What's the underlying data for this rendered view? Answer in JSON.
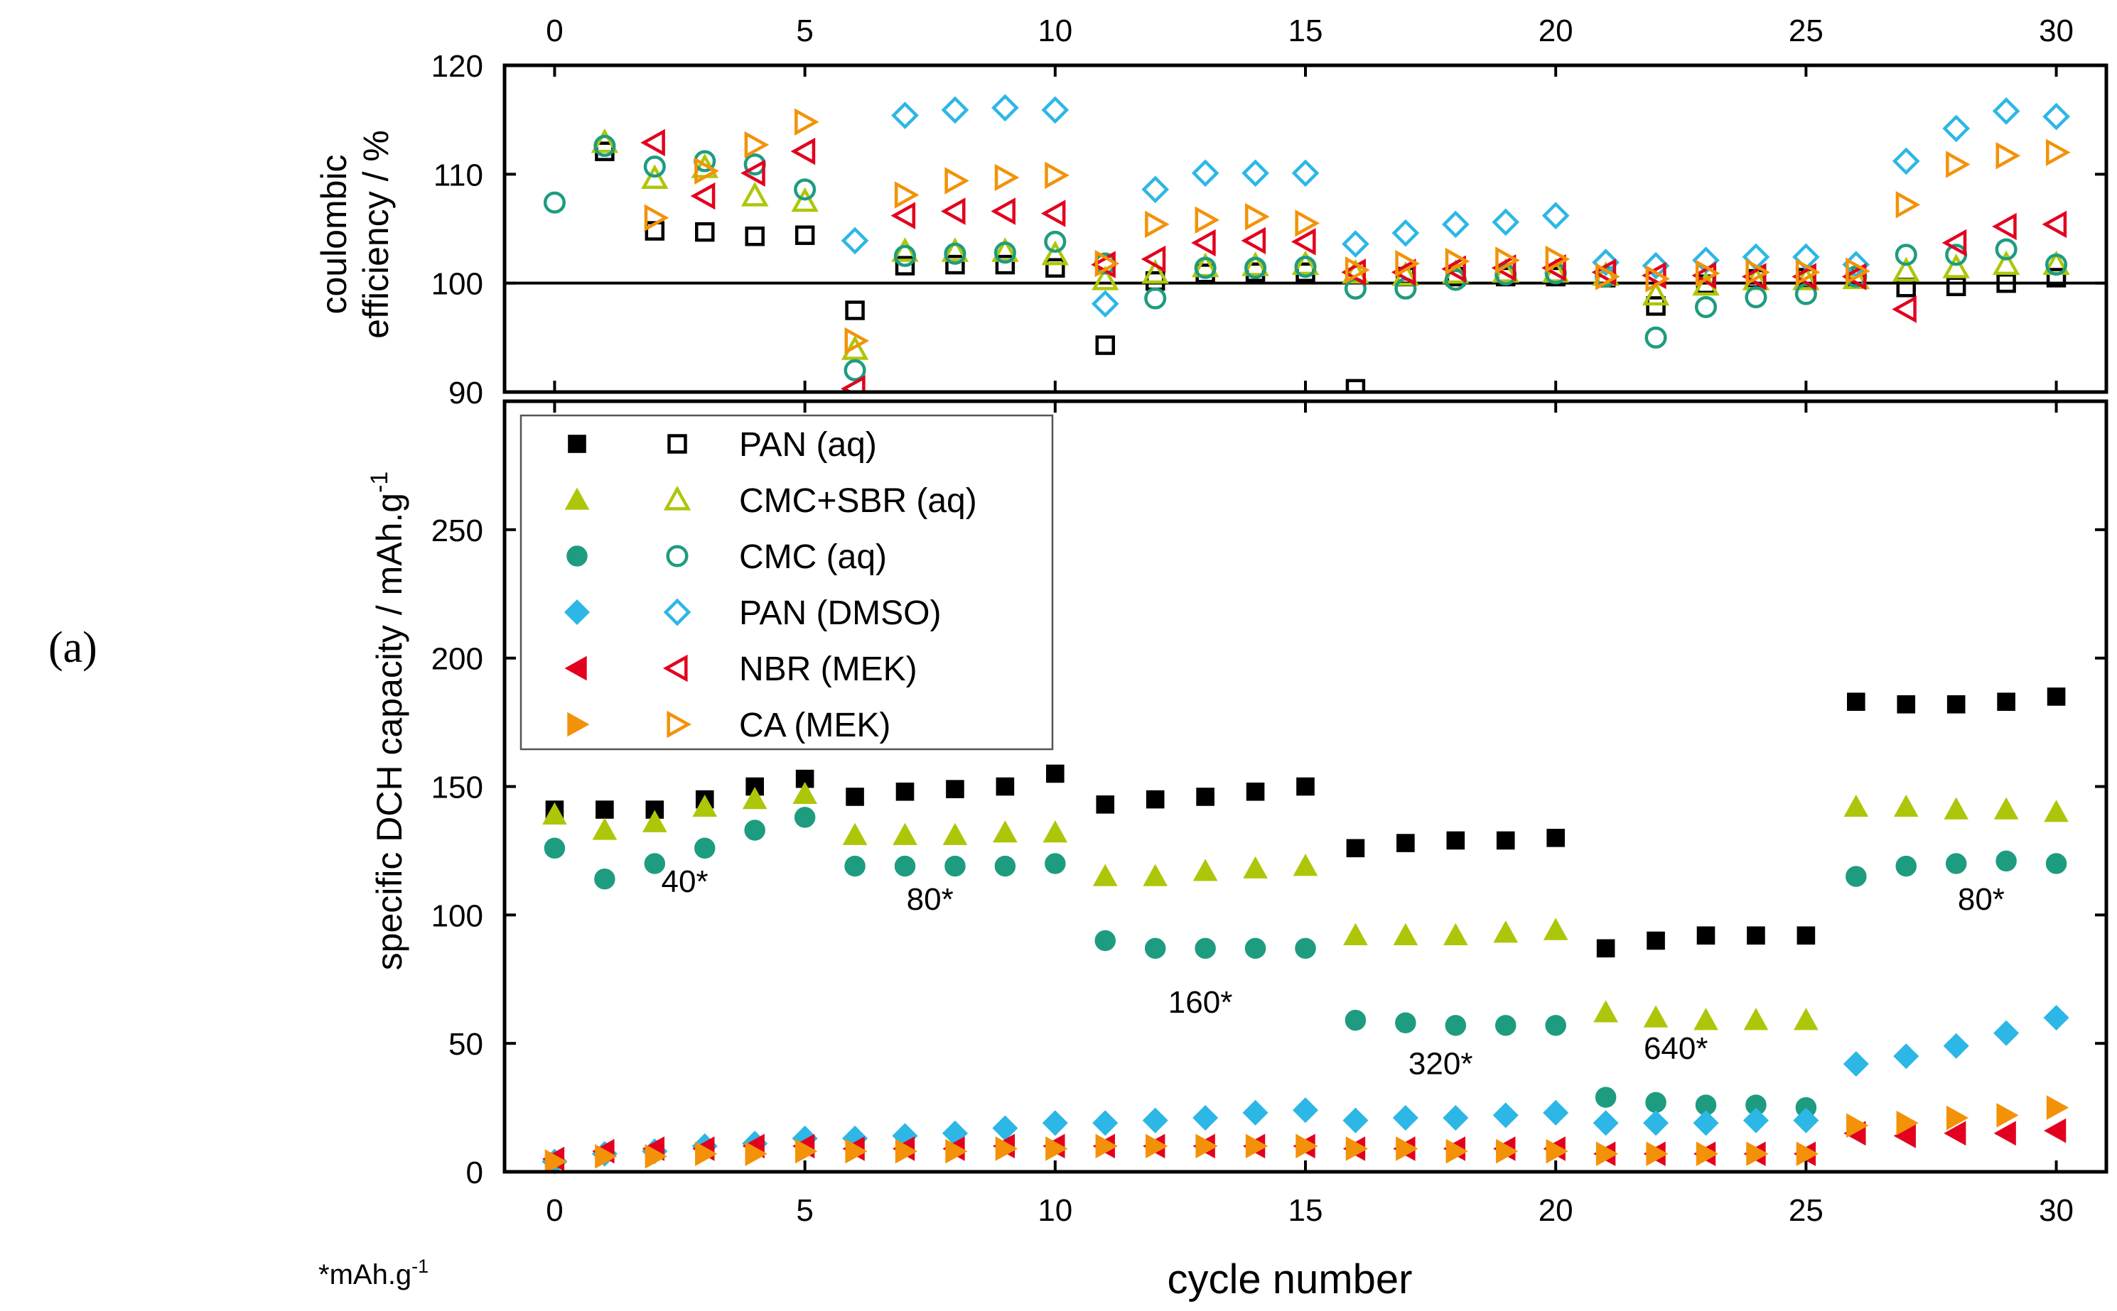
{
  "figure": {
    "panel_label": "(a)",
    "footnote": "*mAh.g",
    "footnote_sup": "-1"
  },
  "colors": {
    "PAN (aq)": "#000000",
    "CMC+SBR (aq)": "#aec60a",
    "CMC (aq)": "#1e9c80",
    "PAN (DMSO)": "#2cb7e6",
    "NBR (MEK)": "#e3001e",
    "CA (MEK)": "#f39208"
  },
  "chart_data": [
    {
      "type": "scatter",
      "panel": "top",
      "ylabel_line1": "coulombic",
      "ylabel_line2": "efficiency / %",
      "xlabel": "",
      "xlim": [
        -1,
        31
      ],
      "ylim": [
        90,
        120
      ],
      "xticks": [
        0,
        5,
        10,
        15,
        20,
        25,
        30
      ],
      "yticks": [
        90,
        100,
        110,
        120
      ],
      "reference_line": 100,
      "series": [
        {
          "name": "PAN (aq)",
          "marker": "square",
          "x": [
            1,
            2,
            3,
            4,
            5,
            6,
            7,
            8,
            9,
            10,
            11,
            12,
            13,
            14,
            15,
            16,
            17,
            18,
            19,
            20,
            21,
            22,
            23,
            24,
            25,
            26,
            27,
            28,
            29,
            30
          ],
          "values": [
            112.1,
            104.8,
            104.7,
            104.3,
            104.4,
            97.5,
            101.6,
            101.7,
            101.7,
            101.4,
            94.3,
            100.2,
            100.9,
            101,
            101,
            90.3,
            100.6,
            100.6,
            100.6,
            100.6,
            100.5,
            97.9,
            99.9,
            100.4,
            100.5,
            100.4,
            99.6,
            99.7,
            100,
            100.5
          ]
        },
        {
          "name": "CMC+SBR (aq)",
          "marker": "triangle-up",
          "x": [
            1,
            2,
            3,
            4,
            5,
            6,
            7,
            8,
            9,
            10,
            11,
            12,
            13,
            14,
            15,
            16,
            17,
            18,
            19,
            20,
            21,
            22,
            23,
            24,
            25,
            26,
            27,
            28,
            29,
            30
          ],
          "values": [
            112.9,
            109.6,
            110.6,
            108,
            107.5,
            93.9,
            102.9,
            102.9,
            102.9,
            102.6,
            100.3,
            100.9,
            101.5,
            101.6,
            101.7,
            100.9,
            100.7,
            100.9,
            101,
            101,
            100.7,
            98.9,
            99.8,
            100.3,
            100.3,
            100.4,
            101.1,
            101.4,
            101.7,
            101.7
          ]
        },
        {
          "name": "CMC (aq)",
          "marker": "circle",
          "x": [
            0,
            1,
            2,
            3,
            4,
            5,
            6,
            7,
            8,
            9,
            10,
            11,
            12,
            13,
            14,
            15,
            16,
            17,
            18,
            19,
            20,
            21,
            22,
            23,
            24,
            25,
            26,
            27,
            28,
            29,
            30
          ],
          "values": [
            107.4,
            112.6,
            110.7,
            111.2,
            110.9,
            108.6,
            92,
            102.5,
            102.7,
            102.8,
            103.8,
            101.8,
            98.6,
            101.4,
            101.4,
            101.5,
            99.5,
            99.5,
            100.3,
            100.8,
            100.9,
            100.6,
            95,
            97.8,
            98.7,
            99,
            100.6,
            102.6,
            102.6,
            103.1,
            101.7
          ]
        },
        {
          "name": "PAN (DMSO)",
          "marker": "diamond",
          "x": [
            6,
            7,
            8,
            9,
            10,
            11,
            12,
            13,
            14,
            15,
            16,
            17,
            18,
            19,
            20,
            21,
            22,
            23,
            24,
            25,
            26,
            27,
            28,
            29,
            30
          ],
          "values": [
            103.9,
            115.4,
            115.9,
            116.1,
            115.9,
            98.1,
            108.6,
            110.1,
            110.1,
            110.1,
            103.6,
            104.6,
            105.4,
            105.6,
            106.2,
            101.9,
            101.6,
            102.1,
            102.4,
            102.4,
            101.7,
            111.2,
            114.2,
            115.8,
            115.3
          ]
        },
        {
          "name": "NBR (MEK)",
          "marker": "triangle-left",
          "x": [
            2,
            3,
            4,
            5,
            6,
            7,
            8,
            9,
            10,
            11,
            12,
            13,
            14,
            15,
            16,
            17,
            18,
            19,
            20,
            21,
            22,
            23,
            24,
            25,
            26,
            27,
            28,
            29,
            30
          ],
          "values": [
            112.9,
            108,
            110.1,
            112.1,
            90.3,
            106.2,
            106.6,
            106.6,
            106.4,
            101.7,
            102.2,
            103.7,
            103.9,
            103.8,
            101,
            101,
            101.3,
            101.4,
            101.4,
            101,
            100.7,
            100.7,
            100.6,
            100.6,
            100.6,
            97.6,
            103.7,
            105.2,
            105.4
          ]
        },
        {
          "name": "CA (MEK)",
          "marker": "triangle-right",
          "x": [
            2,
            3,
            4,
            5,
            6,
            7,
            8,
            9,
            10,
            11,
            12,
            13,
            14,
            15,
            16,
            17,
            18,
            19,
            20,
            21,
            22,
            23,
            24,
            25,
            26,
            27,
            28,
            29,
            30
          ],
          "values": [
            106,
            110.3,
            112.7,
            114.8,
            94.7,
            108.1,
            109.4,
            109.7,
            109.9,
            101.8,
            105.4,
            105.8,
            106.1,
            105.5,
            101.2,
            101.8,
            102,
            102.1,
            102.2,
            100.6,
            100.4,
            100.9,
            101,
            101,
            101.1,
            107.2,
            110.9,
            111.7,
            112
          ]
        }
      ]
    },
    {
      "type": "scatter",
      "panel": "bottom",
      "ylabel": "specific DCH capacity / mAh.g",
      "ylabel_sup": "-1",
      "xlabel": "cycle number",
      "xlim": [
        -1,
        31
      ],
      "ylim": [
        0,
        300
      ],
      "xticks": [
        0,
        5,
        10,
        15,
        20,
        25,
        30
      ],
      "yticks": [
        0,
        50,
        100,
        150,
        200,
        250
      ],
      "series": [
        {
          "name": "PAN (aq)",
          "marker": "square",
          "x": [
            0,
            1,
            2,
            3,
            4,
            5,
            6,
            7,
            8,
            9,
            10,
            11,
            12,
            13,
            14,
            15,
            16,
            17,
            18,
            19,
            20,
            21,
            22,
            23,
            24,
            25,
            26,
            27,
            28,
            29,
            30
          ],
          "values": [
            141,
            141,
            141,
            145,
            150,
            153,
            146,
            148,
            149,
            150,
            155,
            143,
            145,
            146,
            148,
            150,
            126,
            128,
            129,
            129,
            130,
            87,
            90,
            92,
            92,
            92,
            183,
            182,
            182,
            183,
            185
          ]
        },
        {
          "name": "CMC+SBR (aq)",
          "marker": "triangle-up",
          "x": [
            0,
            1,
            2,
            3,
            4,
            5,
            6,
            7,
            8,
            9,
            10,
            11,
            12,
            13,
            14,
            15,
            16,
            17,
            18,
            19,
            20,
            21,
            22,
            23,
            24,
            25,
            26,
            27,
            28,
            29,
            30
          ],
          "values": [
            139,
            133,
            136,
            142,
            145,
            147,
            131,
            131,
            131,
            132,
            132,
            115,
            115,
            117,
            118,
            119,
            92,
            92,
            92,
            93,
            94,
            62,
            60,
            59,
            59,
            59,
            142,
            142,
            141,
            141,
            140
          ]
        },
        {
          "name": "CMC (aq)",
          "marker": "circle",
          "x": [
            0,
            1,
            2,
            3,
            4,
            5,
            6,
            7,
            8,
            9,
            10,
            11,
            12,
            13,
            14,
            15,
            16,
            17,
            18,
            19,
            20,
            21,
            22,
            23,
            24,
            25,
            26,
            27,
            28,
            29,
            30
          ],
          "values": [
            126,
            114,
            120,
            126,
            133,
            138,
            119,
            119,
            119,
            119,
            120,
            90,
            87,
            87,
            87,
            87,
            59,
            58,
            57,
            57,
            57,
            29,
            27,
            26,
            26,
            25,
            115,
            119,
            120,
            121,
            120
          ]
        },
        {
          "name": "PAN (DMSO)",
          "marker": "diamond",
          "x": [
            0,
            1,
            2,
            3,
            4,
            5,
            6,
            7,
            8,
            9,
            10,
            11,
            12,
            13,
            14,
            15,
            16,
            17,
            18,
            19,
            20,
            21,
            22,
            23,
            24,
            25,
            26,
            27,
            28,
            29,
            30
          ],
          "values": [
            4,
            7,
            8,
            10,
            11,
            13,
            13,
            14,
            15,
            17,
            19,
            19,
            20,
            21,
            23,
            24,
            20,
            21,
            21,
            22,
            23,
            19,
            19,
            19,
            20,
            20,
            42,
            45,
            49,
            54,
            60
          ]
        },
        {
          "name": "NBR (MEK)",
          "marker": "triangle-left",
          "x": [
            0,
            1,
            2,
            3,
            4,
            5,
            6,
            7,
            8,
            9,
            10,
            11,
            12,
            13,
            14,
            15,
            16,
            17,
            18,
            19,
            20,
            21,
            22,
            23,
            24,
            25,
            26,
            27,
            28,
            29,
            30
          ],
          "values": [
            5,
            8,
            9,
            9,
            10,
            10,
            9,
            9,
            9,
            10,
            10,
            10,
            10,
            10,
            10,
            10,
            9,
            9,
            9,
            9,
            9,
            7,
            7,
            7,
            7,
            7,
            15,
            14,
            15,
            15,
            16
          ]
        },
        {
          "name": "CA (MEK)",
          "marker": "triangle-right",
          "x": [
            0,
            1,
            2,
            3,
            4,
            5,
            6,
            7,
            8,
            9,
            10,
            11,
            12,
            13,
            14,
            15,
            16,
            17,
            18,
            19,
            20,
            21,
            22,
            23,
            24,
            25,
            26,
            27,
            28,
            29,
            30
          ],
          "values": [
            4,
            6,
            6,
            7,
            7,
            8,
            8,
            8,
            8,
            9,
            9,
            10,
            10,
            10,
            10,
            10,
            9,
            9,
            8,
            8,
            8,
            7,
            7,
            7,
            7,
            7,
            18,
            19,
            21,
            22,
            25
          ]
        }
      ],
      "annotations": [
        {
          "text": "40*",
          "x": 2.6,
          "y": 109
        },
        {
          "text": "80*",
          "x": 7.5,
          "y": 102
        },
        {
          "text": "160*",
          "x": 12.9,
          "y": 62
        },
        {
          "text": "320*",
          "x": 17.7,
          "y": 38
        },
        {
          "text": "640*",
          "x": 22.4,
          "y": 44
        },
        {
          "text": "80*",
          "x": 28.5,
          "y": 102
        }
      ],
      "legend": {
        "position": "top-left",
        "entries": [
          "PAN (aq)",
          "CMC+SBR (aq)",
          "CMC (aq)",
          "PAN (DMSO)",
          "NBR (MEK)",
          "CA (MEK)"
        ]
      }
    }
  ]
}
